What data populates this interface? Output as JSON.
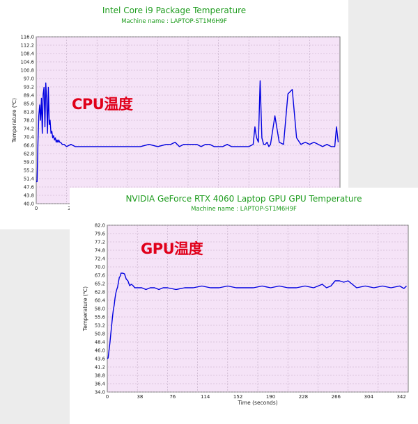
{
  "chart_data": [
    {
      "type": "line",
      "title": "Intel Core i9 Package Temperature",
      "subtitle": "Machine name : LAPTOP-ST1M6H9F",
      "ylabel": "Temperature (℃)",
      "xlabel": "",
      "overlay_label": "CPU温度",
      "ylim": [
        40.0,
        116.0
      ],
      "yticks": [
        "116.0",
        "112.2",
        "108.4",
        "104.6",
        "100.8",
        "97.0",
        "93.2",
        "89.4",
        "85.6",
        "81.8",
        "78.0",
        "74.2",
        "70.4",
        "66.6",
        "62.8",
        "59.0",
        "55.2",
        "51.4",
        "47.6",
        "43.8",
        "40.0"
      ],
      "xlim": [
        0,
        350
      ],
      "xticks": [
        "0",
        "3"
      ],
      "grid": true,
      "line_color": "#0000e0",
      "series": [
        {
          "x": [
            0,
            1,
            2,
            3,
            4,
            5,
            6,
            7,
            8,
            9,
            10,
            11,
            12,
            13,
            14,
            15,
            16,
            17,
            18,
            19,
            20,
            21,
            22,
            23,
            24,
            25,
            26,
            27,
            28,
            30,
            32,
            35,
            40,
            45,
            50,
            55,
            60,
            65,
            70,
            75,
            80,
            85,
            90,
            95,
            100,
            110,
            120,
            130,
            140,
            150,
            155,
            160,
            165,
            170,
            175,
            180,
            185,
            190,
            195,
            200,
            205,
            210,
            215,
            220,
            225,
            230,
            235,
            240,
            245,
            250,
            252,
            253,
            254,
            256,
            258,
            260,
            262,
            264,
            266,
            268,
            270,
            275,
            280,
            285,
            290,
            295,
            300,
            305,
            310,
            315,
            320,
            325,
            330,
            335,
            340,
            342,
            344,
            346,
            348
          ],
          "y": [
            50,
            50,
            68,
            80,
            85,
            78,
            88,
            72,
            90,
            93,
            75,
            95,
            88,
            72,
            93,
            76,
            78,
            72,
            73,
            70,
            71,
            69,
            70,
            68,
            69,
            68,
            69,
            68,
            68,
            67,
            67,
            66,
            67,
            66,
            66,
            66,
            66,
            66,
            66,
            66,
            66,
            66,
            66,
            66,
            66,
            66,
            66,
            67,
            66,
            67,
            67,
            68,
            66,
            67,
            67,
            67,
            67,
            66,
            67,
            67,
            66,
            66,
            66,
            67,
            66,
            66,
            66,
            66,
            66,
            67,
            75,
            72,
            70,
            68,
            96,
            70,
            67,
            67,
            68,
            66,
            67,
            80,
            68,
            67,
            90,
            92,
            70,
            67,
            68,
            67,
            68,
            67,
            66,
            67,
            66,
            66,
            66,
            75,
            68
          ]
        }
      ]
    },
    {
      "type": "line",
      "title": "NVIDIA GeForce RTX 4060 Laptop GPU GPU Temperature",
      "subtitle": "Machine name : LAPTOP-ST1M6H9F",
      "ylabel": "Temperature (℃)",
      "xlabel": "Time (seconds)",
      "overlay_label": "GPU温度",
      "ylim": [
        34.0,
        82.0
      ],
      "yticks": [
        "82.0",
        "79.6",
        "77.2",
        "74.8",
        "72.4",
        "70.0",
        "67.6",
        "65.2",
        "62.8",
        "60.4",
        "58.0",
        "55.6",
        "53.2",
        "50.8",
        "48.4",
        "46.0",
        "43.6",
        "41.2",
        "38.8",
        "36.4",
        "34.0"
      ],
      "xlim": [
        0,
        350
      ],
      "xticks": [
        "0",
        "38",
        "76",
        "114",
        "152",
        "190",
        "228",
        "266",
        "304",
        "342"
      ],
      "grid": true,
      "line_color": "#0000e0",
      "series": [
        {
          "x": [
            0,
            1,
            2,
            3,
            4,
            5,
            6,
            7,
            8,
            9,
            10,
            11,
            12,
            13,
            14,
            15,
            16,
            17,
            18,
            20,
            22,
            24,
            26,
            28,
            30,
            32,
            34,
            36,
            38,
            40,
            45,
            50,
            55,
            60,
            65,
            70,
            80,
            90,
            100,
            110,
            120,
            130,
            140,
            150,
            160,
            170,
            180,
            190,
            200,
            210,
            220,
            230,
            240,
            250,
            255,
            260,
            265,
            270,
            275,
            280,
            285,
            290,
            300,
            310,
            320,
            330,
            340,
            345,
            348
          ],
          "y": [
            43.6,
            43.8,
            46,
            48,
            50.5,
            53,
            55.5,
            57.5,
            59,
            61,
            62.5,
            63.5,
            64.2,
            65.6,
            67,
            67.3,
            68.2,
            68.2,
            68.2,
            68,
            66.5,
            66,
            64.6,
            65,
            64.6,
            64,
            64,
            64,
            64,
            64,
            63.5,
            64,
            64,
            63.5,
            64,
            64,
            63.5,
            64,
            64,
            64.5,
            64,
            64,
            64.5,
            64,
            64,
            64,
            64.5,
            64,
            64.5,
            64,
            64,
            64.5,
            64,
            65,
            64,
            64.5,
            66,
            66,
            65.6,
            66,
            65,
            64,
            64.5,
            64,
            64.5,
            64,
            64.5,
            63.8,
            64.5
          ]
        }
      ]
    }
  ]
}
